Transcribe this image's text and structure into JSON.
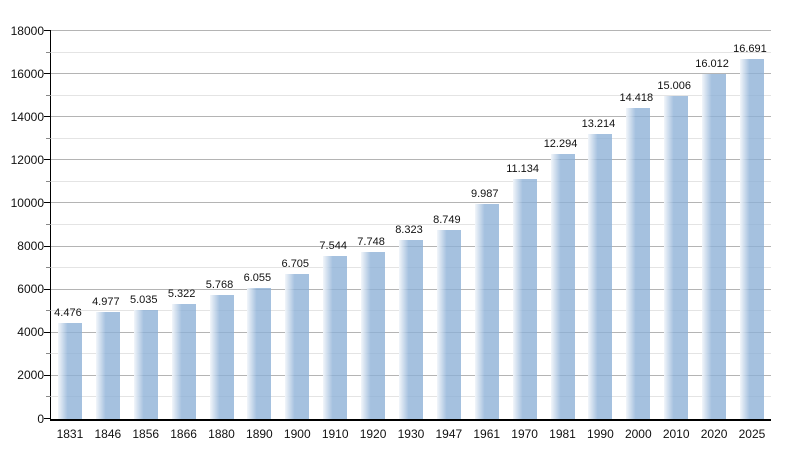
{
  "chart_data": {
    "type": "bar",
    "title": "",
    "xlabel": "",
    "ylabel": "",
    "categories": [
      "1831",
      "1846",
      "1856",
      "1866",
      "1880",
      "1890",
      "1900",
      "1910",
      "1920",
      "1930",
      "1947",
      "1961",
      "1970",
      "1981",
      "1990",
      "2000",
      "2010",
      "2020",
      "2025"
    ],
    "values": [
      4476,
      4977,
      5035,
      5322,
      5768,
      6055,
      6705,
      7544,
      7748,
      8323,
      8749,
      9987,
      11134,
      12294,
      13214,
      14418,
      15006,
      16012,
      16691
    ],
    "value_labels": [
      "4.476",
      "4.977",
      "5.035",
      "5.322",
      "5.768",
      "6.055",
      "6.705",
      "7.544",
      "7.748",
      "8.323",
      "8.749",
      "9.987",
      "11.134",
      "12.294",
      "13.214",
      "14.418",
      "15.006",
      "16.012",
      "16.691"
    ],
    "ylim": [
      0,
      18000
    ],
    "y_major_step": 2000,
    "y_minor_step": 1000,
    "y_tick_labels": [
      "0",
      "2000",
      "4000",
      "6000",
      "8000",
      "10000",
      "12000",
      "14000",
      "16000",
      "18000"
    ],
    "grid": true,
    "legend_position": "none",
    "colors": {
      "bar_fill": "#a9c5e1",
      "bar_fill_rgba": "rgba(140,176,214,0.78)",
      "bar_left_highlight": "rgba(255,255,255,0.85)",
      "grid_major": "#b4b4b4",
      "grid_minor": "#e4e4e4",
      "axis": "#000000",
      "text": "#111111",
      "background": "#ffffff"
    }
  }
}
